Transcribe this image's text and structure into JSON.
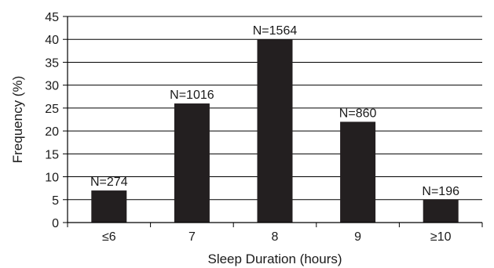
{
  "chart_data": {
    "type": "bar",
    "title": "",
    "xlabel": "Sleep Duration (hours)",
    "ylabel": "Frequency (%)",
    "categories": [
      "≤6",
      "7",
      "8",
      "9",
      "≥10"
    ],
    "values": [
      7,
      26,
      40,
      22,
      5
    ],
    "data_labels": [
      "N=274",
      "N=1016",
      "N=1564",
      "N=860",
      "N=196"
    ],
    "ylim": [
      0,
      45
    ],
    "yticks": [
      "0",
      "5",
      "10",
      "15",
      "20",
      "25",
      "30",
      "35",
      "40",
      "45"
    ],
    "grid": true,
    "legend": "none",
    "colors": {
      "bar": "#231f20",
      "grid": "#000000",
      "axis": "#000000"
    }
  }
}
